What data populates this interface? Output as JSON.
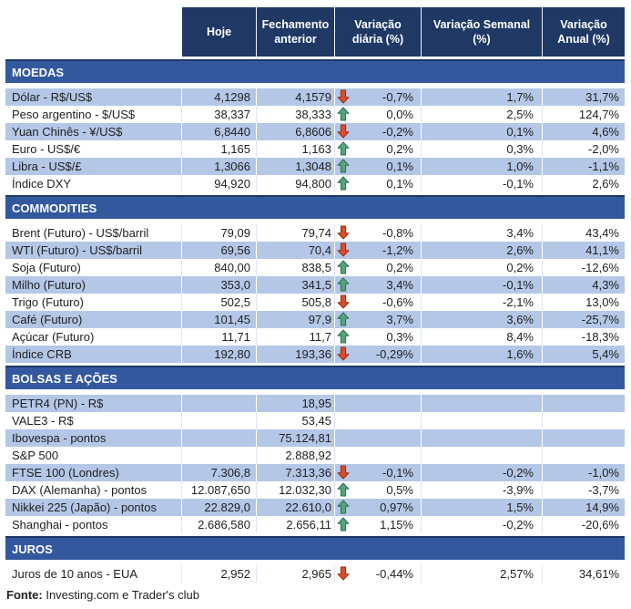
{
  "colors": {
    "header_bg": "#1F3864",
    "band_bg": "#33589E",
    "shaded_row_bg": "#B4C7E7",
    "up_fill": "#55A57C",
    "up_stroke": "#2E6B50",
    "down_fill": "#D94F2B",
    "down_stroke": "#9A2B12"
  },
  "chart_data": {
    "type": "table",
    "columns": [
      "Hoje",
      "Fechamento anterior",
      "Variação diária (%)",
      "Variação Semanal (%)",
      "Variação Anual (%)"
    ],
    "sections": [
      {
        "title": "MOEDAS",
        "rows": [
          {
            "label": "Dólar - R$/US$",
            "hoje": "4,1298",
            "fechamento": "4,1579",
            "arrow": "down",
            "diaria": "-0,7%",
            "semanal": "1,7%",
            "anual": "31,7%"
          },
          {
            "label": "Peso argentino - $/US$",
            "hoje": "38,337",
            "fechamento": "38,333",
            "arrow": "up",
            "diaria": "0,0%",
            "semanal": "2,5%",
            "anual": "124,7%"
          },
          {
            "label": "Yuan Chinês - ¥/US$",
            "hoje": "6,8440",
            "fechamento": "6,8606",
            "arrow": "down",
            "diaria": "-0,2%",
            "semanal": "0,1%",
            "anual": "4,6%"
          },
          {
            "label": "Euro - US$/€",
            "hoje": "1,165",
            "fechamento": "1,163",
            "arrow": "up",
            "diaria": "0,2%",
            "semanal": "0,3%",
            "anual": "-2,0%"
          },
          {
            "label": "Libra - US$/£",
            "hoje": "1,3066",
            "fechamento": "1,3048",
            "arrow": "up",
            "diaria": "0,1%",
            "semanal": "1,0%",
            "anual": "-1,1%"
          },
          {
            "label": "Índice DXY",
            "hoje": "94,920",
            "fechamento": "94,800",
            "arrow": "up",
            "diaria": "0,1%",
            "semanal": "-0,1%",
            "anual": "2,6%"
          }
        ]
      },
      {
        "title": "COMMODITIES",
        "rows": [
          {
            "label": "Brent (Futuro) - US$/barril",
            "hoje": "79,09",
            "fechamento": "79,74",
            "arrow": "down",
            "diaria": "-0,8%",
            "semanal": "3,4%",
            "anual": "43,4%"
          },
          {
            "label": "WTI (Futuro) - US$/barril",
            "hoje": "69,56",
            "fechamento": "70,4",
            "arrow": "down",
            "diaria": "-1,2%",
            "semanal": "2,6%",
            "anual": "41,1%"
          },
          {
            "label": "Soja (Futuro)",
            "hoje": "840,00",
            "fechamento": "838,5",
            "arrow": "up",
            "diaria": "0,2%",
            "semanal": "0,2%",
            "anual": "-12,6%"
          },
          {
            "label": "Milho (Futuro)",
            "hoje": "353,0",
            "fechamento": "341,5",
            "arrow": "up",
            "diaria": "3,4%",
            "semanal": "-0,1%",
            "anual": "4,3%"
          },
          {
            "label": "Trigo (Futuro)",
            "hoje": "502,5",
            "fechamento": "505,8",
            "arrow": "down",
            "diaria": "-0,6%",
            "semanal": "-2,1%",
            "anual": "13,0%"
          },
          {
            "label": "Café (Futuro)",
            "hoje": "101,45",
            "fechamento": "97,9",
            "arrow": "up",
            "diaria": "3,7%",
            "semanal": "3,6%",
            "anual": "-25,7%"
          },
          {
            "label": "Açúcar (Futuro)",
            "hoje": "11,71",
            "fechamento": "11,7",
            "arrow": "up",
            "diaria": "0,3%",
            "semanal": "8,4%",
            "anual": "-18,3%"
          },
          {
            "label": "Índice CRB",
            "hoje": "192,80",
            "fechamento": "193,36",
            "arrow": "down",
            "diaria": "-0,29%",
            "semanal": "1,6%",
            "anual": "5,4%"
          }
        ]
      },
      {
        "title": "BOLSAS E AÇÕES",
        "rows": [
          {
            "label": "PETR4 (PN) - R$",
            "hoje": "",
            "fechamento": "18,95",
            "arrow": "",
            "diaria": "",
            "semanal": "",
            "anual": ""
          },
          {
            "label": "VALE3 - R$",
            "hoje": "",
            "fechamento": "53,45",
            "arrow": "",
            "diaria": "",
            "semanal": "",
            "anual": ""
          },
          {
            "label": "Ibovespa - pontos",
            "hoje": "",
            "fechamento": "75.124,81",
            "arrow": "",
            "diaria": "",
            "semanal": "",
            "anual": ""
          },
          {
            "label": "S&P 500",
            "hoje": "",
            "fechamento": "2.888,92",
            "arrow": "",
            "diaria": "",
            "semanal": "",
            "anual": ""
          },
          {
            "label": "FTSE 100 (Londres)",
            "hoje": "7.306,8",
            "fechamento": "7.313,36",
            "arrow": "down",
            "diaria": "-0,1%",
            "semanal": "-0,2%",
            "anual": "-1,0%"
          },
          {
            "label": "DAX (Alemanha) - pontos",
            "hoje": "12.087,650",
            "fechamento": "12.032,30",
            "arrow": "up",
            "diaria": "0,5%",
            "semanal": "-3,9%",
            "anual": "-3,7%"
          },
          {
            "label": "Nikkei 225 (Japão) - pontos",
            "hoje": "22.829,0",
            "fechamento": "22.610,0",
            "arrow": "up",
            "diaria": "0,97%",
            "semanal": "1,5%",
            "anual": "14,9%"
          },
          {
            "label": "Shanghai - pontos",
            "hoje": "2.686,580",
            "fechamento": "2.656,11",
            "arrow": "up",
            "diaria": "1,15%",
            "semanal": "-0,2%",
            "anual": "-20,6%"
          }
        ]
      },
      {
        "title": "JUROS",
        "rows": [
          {
            "label": "Juros de 10 anos - EUA",
            "hoje": "2,952",
            "fechamento": "2,965",
            "arrow": "down",
            "diaria": "-0,44%",
            "semanal": "2,57%",
            "anual": "34,61%"
          }
        ]
      }
    ]
  },
  "footer": {
    "label": "Fonte:",
    "text": " Investing.com e Trader's club"
  }
}
